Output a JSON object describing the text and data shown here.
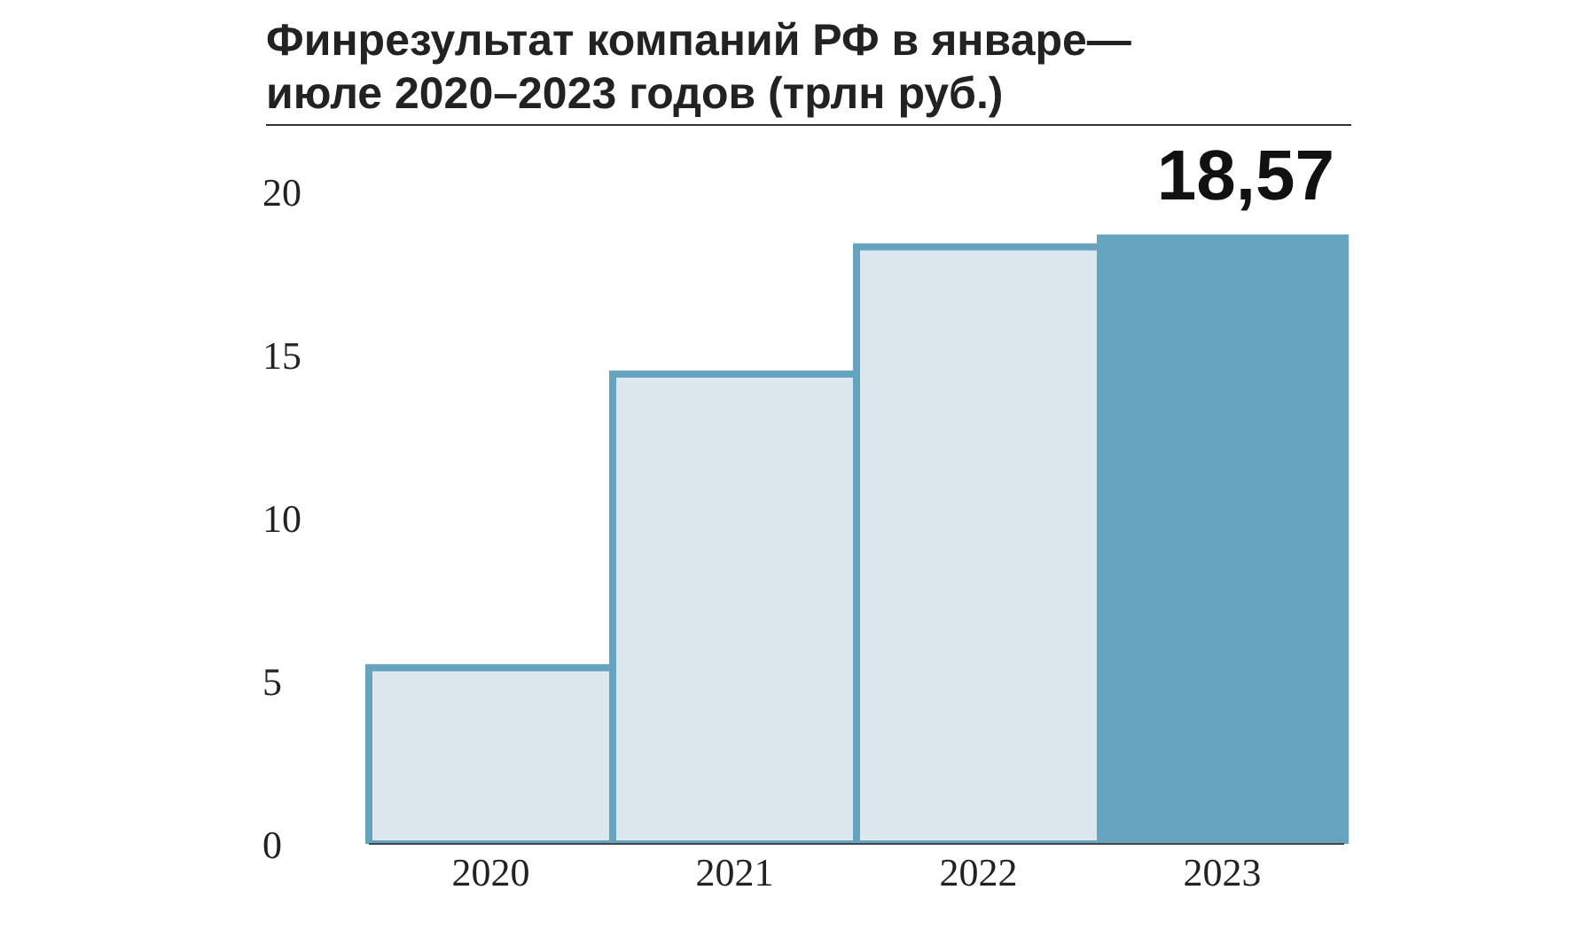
{
  "chart_data": {
    "type": "bar",
    "title": "Финрезультат компаний РФ в январе—\nиюле 2020–2023 годов (трлн руб.)",
    "categories": [
      "2020",
      "2021",
      "2022",
      "2023"
    ],
    "values": [
      5.4,
      14.4,
      18.3,
      18.57
    ],
    "colors": [
      "#dde7ee",
      "#dde7ee",
      "#dde7ee",
      "#65a3bf"
    ],
    "value_labels": [
      null,
      null,
      null,
      "18,57"
    ],
    "ylim": [
      0,
      20
    ],
    "yticks": [
      0,
      5,
      10,
      15,
      20
    ]
  }
}
